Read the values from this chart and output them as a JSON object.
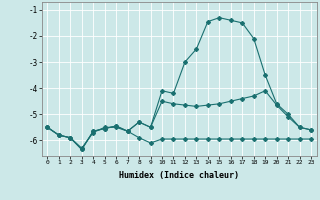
{
  "xlabel": "Humidex (Indice chaleur)",
  "background_color": "#cce8e8",
  "grid_color": "#ffffff",
  "line_color": "#1a7070",
  "xlim": [
    -0.5,
    23.5
  ],
  "ylim": [
    -6.6,
    -0.7
  ],
  "yticks": [
    -6,
    -5,
    -4,
    -3,
    -2,
    -1
  ],
  "xticks": [
    0,
    1,
    2,
    3,
    4,
    5,
    6,
    7,
    8,
    9,
    10,
    11,
    12,
    13,
    14,
    15,
    16,
    17,
    18,
    19,
    20,
    21,
    22,
    23
  ],
  "line1_x": [
    0,
    1,
    2,
    3,
    4,
    5,
    6,
    7,
    8,
    9,
    10,
    11,
    12,
    13,
    14,
    15,
    16,
    17,
    18,
    19,
    20,
    21,
    22,
    23
  ],
  "line1_y": [
    -5.5,
    -5.8,
    -5.9,
    -6.3,
    -5.7,
    -5.5,
    -5.5,
    -5.65,
    -5.9,
    -6.1,
    -5.95,
    -5.95,
    -5.95,
    -5.95,
    -5.95,
    -5.95,
    -5.95,
    -5.95,
    -5.95,
    -5.95,
    -5.95,
    -5.95,
    -5.95,
    -5.95
  ],
  "line2_x": [
    0,
    1,
    2,
    3,
    4,
    5,
    6,
    7,
    8,
    9,
    10,
    11,
    12,
    13,
    14,
    15,
    16,
    17,
    18,
    19,
    20,
    21,
    22,
    23
  ],
  "line2_y": [
    -5.5,
    -5.8,
    -5.9,
    -6.35,
    -5.65,
    -5.55,
    -5.45,
    -5.65,
    -5.3,
    -5.5,
    -4.1,
    -4.2,
    -3.0,
    -2.5,
    -1.45,
    -1.3,
    -1.4,
    -1.5,
    -2.1,
    -3.5,
    -4.6,
    -5.0,
    -5.5,
    -5.6
  ],
  "line3_x": [
    0,
    1,
    2,
    3,
    4,
    5,
    6,
    7,
    8,
    9,
    10,
    11,
    12,
    13,
    14,
    15,
    16,
    17,
    18,
    19,
    20,
    21,
    22,
    23
  ],
  "line3_y": [
    -5.5,
    -5.8,
    -5.9,
    -6.35,
    -5.65,
    -5.55,
    -5.45,
    -5.65,
    -5.3,
    -5.5,
    -4.5,
    -4.6,
    -4.65,
    -4.7,
    -4.65,
    -4.6,
    -4.5,
    -4.4,
    -4.3,
    -4.1,
    -4.65,
    -5.1,
    -5.5,
    -5.6
  ]
}
